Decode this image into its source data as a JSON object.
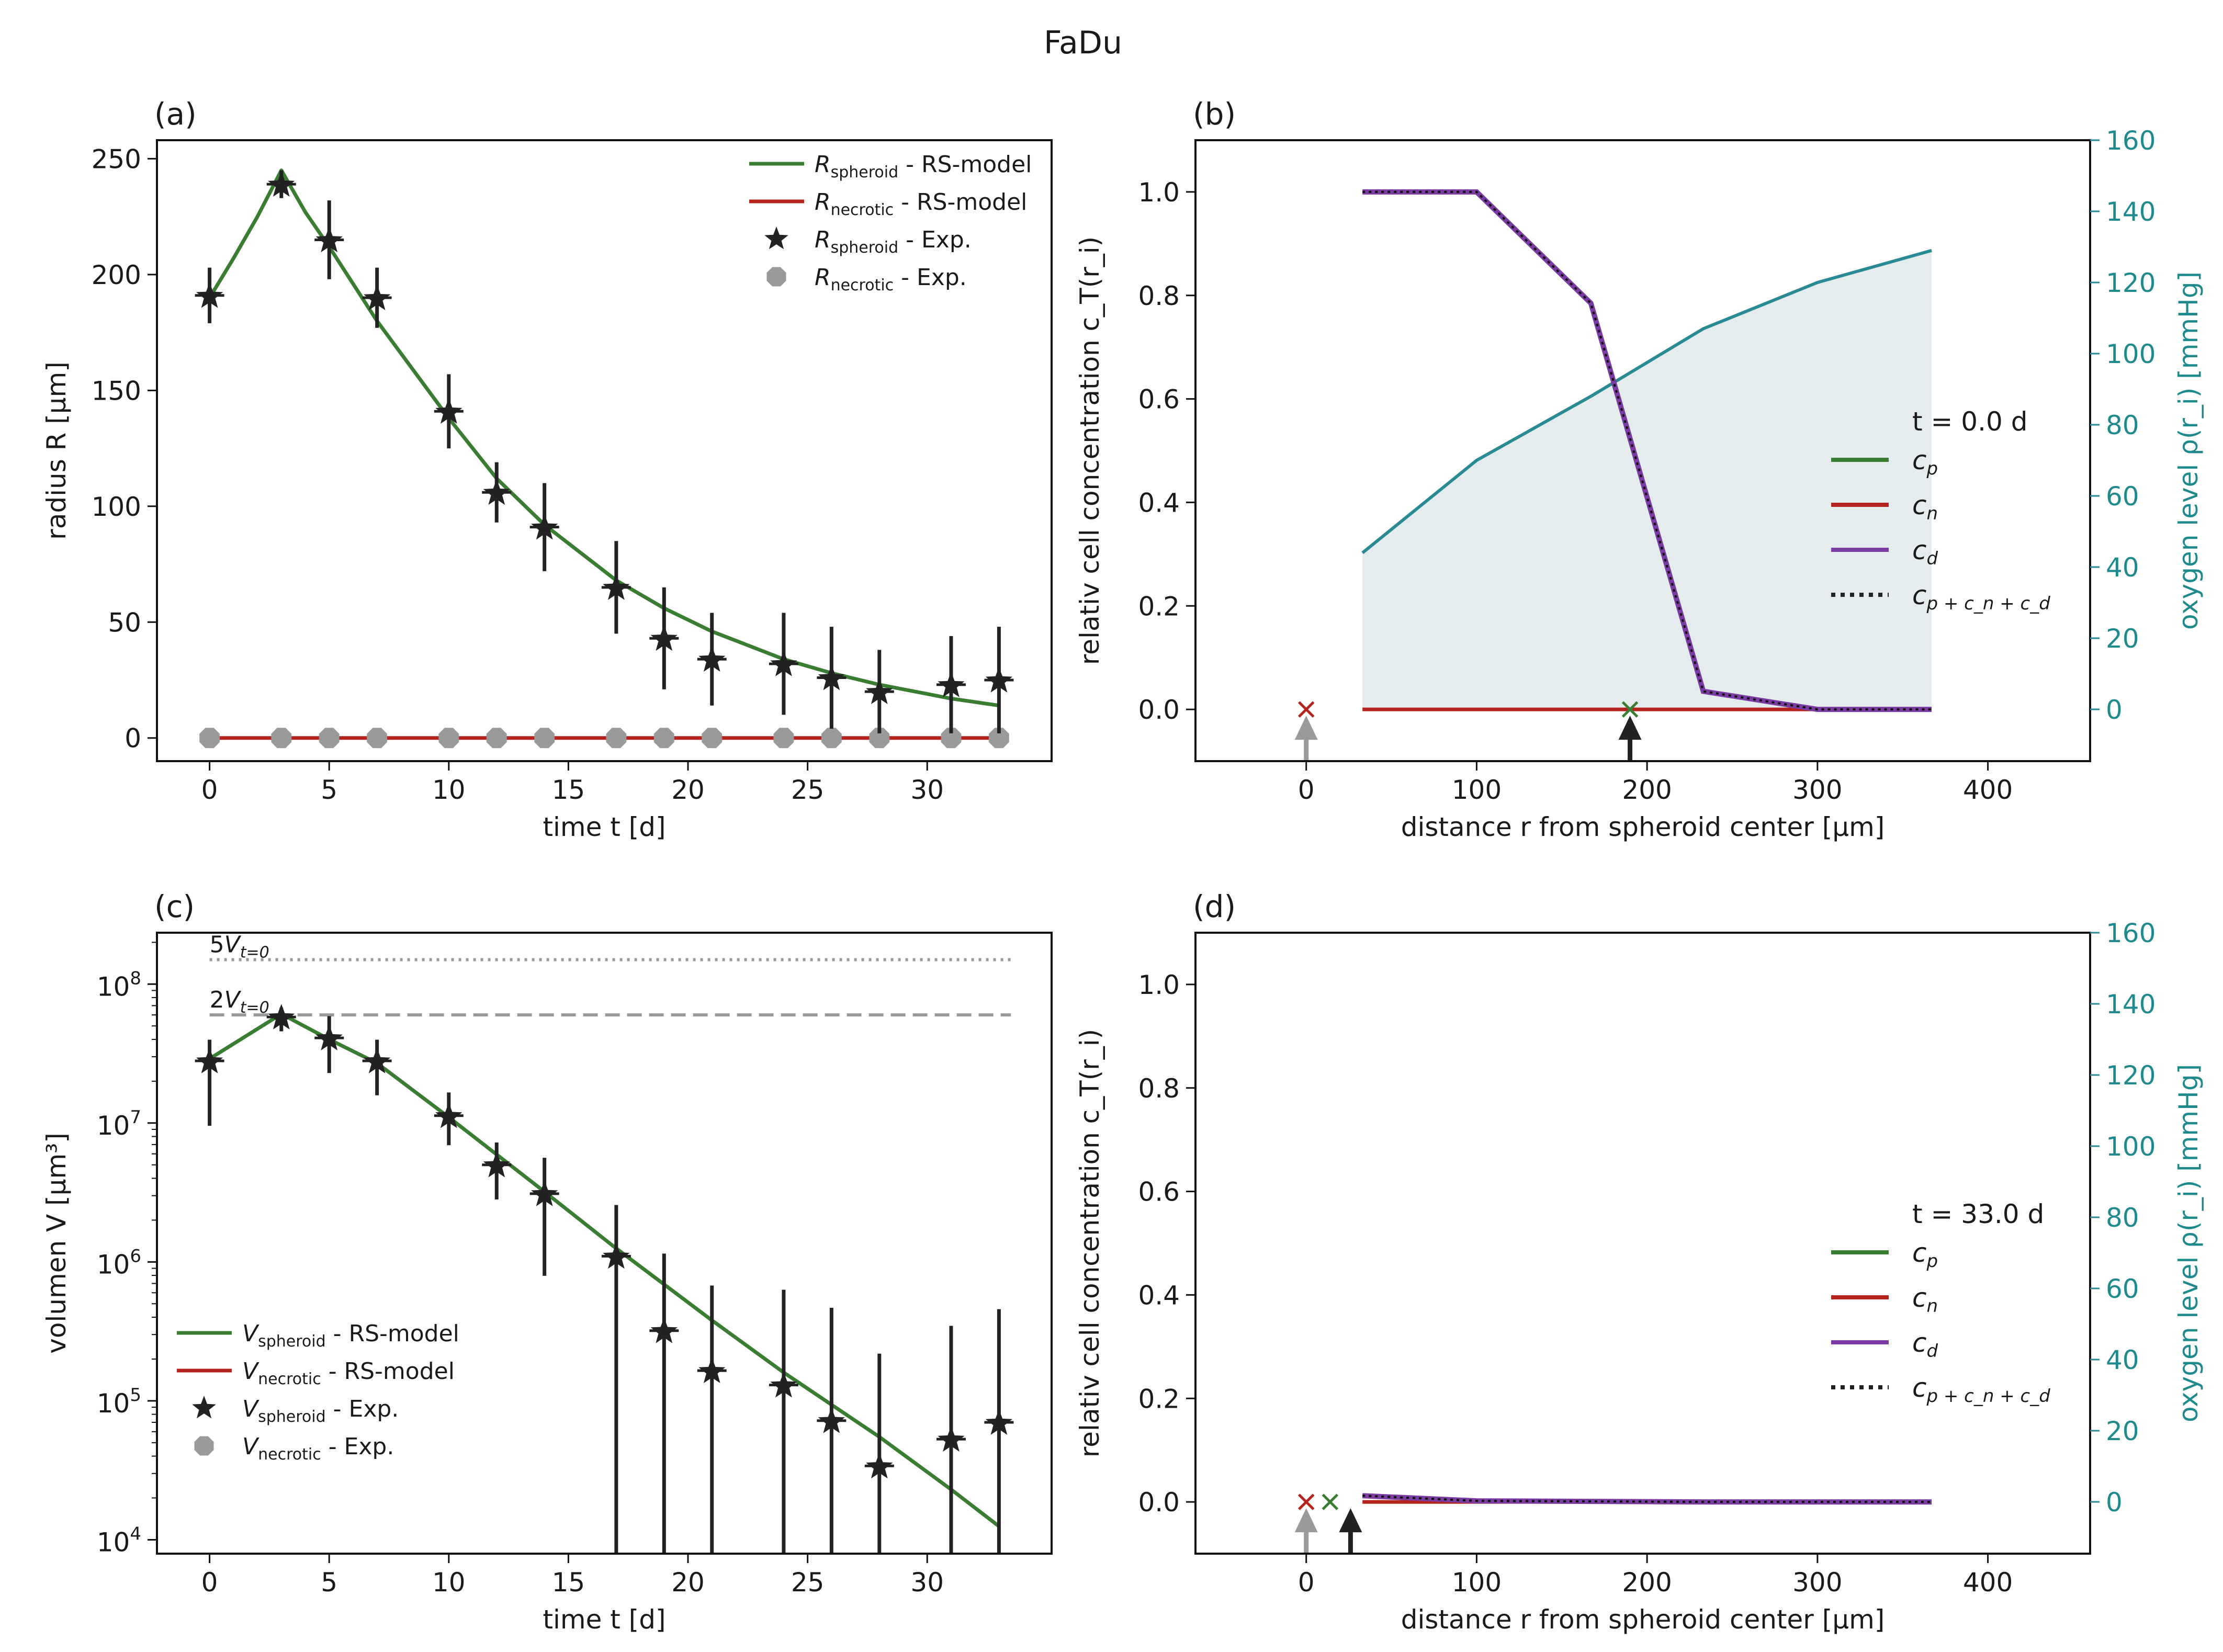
{
  "figure_title": "FaDu",
  "colors": {
    "spheroid_model": "#3a7d32",
    "necrotic_model": "#b5241c",
    "spheroid_exp": "#222222",
    "necrotic_exp": "#9a9a9a",
    "c_d": "#7a3ba3",
    "oxygen": "#2a8a93",
    "oxygen_fill": "#e4ecee"
  },
  "chart_data": [
    {
      "id": "a",
      "panel_label": "(a)",
      "type": "line",
      "xlabel": "time t [d]",
      "ylabel": "radius R [μm]",
      "xlim": [
        -2.2,
        35.2
      ],
      "ylim": [
        -10,
        258
      ],
      "xticks": [
        0,
        5,
        10,
        15,
        20,
        25,
        30
      ],
      "yticks": [
        0,
        50,
        100,
        150,
        200,
        250
      ],
      "legend_position": "upper right",
      "legend": [
        {
          "sym": "R",
          "sub": "spheroid",
          "suffix": " - RS-model"
        },
        {
          "sym": "R",
          "sub": "necrotic",
          "suffix": " - RS-model"
        },
        {
          "sym": "R",
          "sub": "spheroid",
          "suffix": " - Exp."
        },
        {
          "sym": "R",
          "sub": "necrotic",
          "suffix": " - Exp."
        }
      ],
      "model_spheroid": {
        "x": [
          0,
          1,
          2,
          3,
          4,
          5,
          7,
          10,
          12,
          14,
          17,
          19,
          21,
          24,
          26,
          28,
          31,
          33
        ],
        "y": [
          190,
          207,
          225,
          245,
          227,
          212,
          180,
          138,
          112,
          92,
          68,
          56,
          46,
          34,
          28,
          23,
          17,
          14
        ]
      },
      "model_necrotic": {
        "x": [
          0,
          33
        ],
        "y": [
          0,
          0
        ]
      },
      "exp_spheroid": {
        "x": [
          0,
          3,
          5,
          7,
          10,
          12,
          14,
          17,
          19,
          21,
          24,
          26,
          28,
          31,
          33
        ],
        "y": [
          191,
          239,
          215,
          190,
          141,
          106,
          91,
          65,
          43,
          34,
          32,
          26,
          20,
          23,
          25
        ],
        "err": [
          12,
          6,
          17,
          13,
          16,
          13,
          19,
          20,
          22,
          20,
          22,
          22,
          18,
          21,
          23
        ]
      },
      "exp_necrotic": {
        "x": [
          0,
          3,
          5,
          7,
          10,
          12,
          14,
          17,
          19,
          21,
          24,
          26,
          28,
          31,
          33
        ],
        "y": [
          0,
          0,
          0,
          0,
          0,
          0,
          0,
          0,
          0,
          0,
          0,
          0,
          0,
          0,
          0
        ]
      }
    },
    {
      "id": "c",
      "panel_label": "(c)",
      "type": "line",
      "yscale": "log",
      "xlabel": "time t [d]",
      "ylabel": "volumen V [μm³]",
      "xlim": [
        -2.2,
        35.2
      ],
      "ylim_log10": [
        3.9,
        8.37
      ],
      "xticks": [
        0,
        5,
        10,
        15,
        20,
        25,
        30
      ],
      "yticks_exp": [
        4,
        5,
        6,
        7,
        8
      ],
      "legend_position": "lower left",
      "legend": [
        {
          "sym": "V",
          "sub": "spheroid",
          "suffix": " - RS-model"
        },
        {
          "sym": "V",
          "sub": "necrotic",
          "suffix": " - RS-model"
        },
        {
          "sym": "V",
          "sub": "spheroid",
          "suffix": " - Exp."
        },
        {
          "sym": "V",
          "sub": "necrotic",
          "suffix": " - Exp."
        }
      ],
      "ref_lines": [
        {
          "label": "5V",
          "sub": "t=0",
          "value": 150000000,
          "style": "dotted"
        },
        {
          "label": "2V",
          "sub": "t=0",
          "value": 60000000,
          "style": "dashed"
        }
      ],
      "model_spheroid": {
        "x": [
          0,
          3,
          5,
          7,
          10,
          14,
          17,
          21,
          24,
          28,
          31,
          33
        ],
        "y": [
          29000000,
          61000000,
          40000000,
          27000000,
          11000000,
          3200000,
          1250000,
          380000,
          160000,
          55000,
          23000,
          12500
        ]
      },
      "exp_spheroid": {
        "x": [
          0,
          3,
          5,
          7,
          10,
          12,
          14,
          17,
          19,
          21,
          24,
          26,
          28,
          31,
          33
        ],
        "y": [
          28000000,
          58000000,
          41000000,
          28000000,
          11300000,
          5000000,
          3100000,
          1100000,
          320000,
          165000,
          130000,
          72000,
          34000,
          53000,
          70000
        ],
        "err_lo_log10": [
          6.98,
          7.66,
          7.36,
          7.2,
          6.84,
          6.45,
          5.9,
          3.5,
          3.5,
          3.5,
          3.5,
          3.5,
          3.5,
          3.5,
          3.5
        ],
        "err_hi_log10": [
          7.6,
          7.83,
          7.77,
          7.6,
          7.22,
          6.86,
          6.75,
          6.41,
          6.06,
          5.83,
          5.8,
          5.67,
          5.34,
          5.54,
          5.66
        ]
      }
    },
    {
      "id": "b",
      "panel_label": "(b)",
      "type": "line",
      "xlabel": "distance r from spheroid center [μm]",
      "ylabel_left": "relativ cell concentration c_T(r_i)",
      "ylabel_right": "oxygen level ρ(r_i) [mmHg]",
      "time_label": "t = 0.0 d",
      "xlim": [
        -65,
        460
      ],
      "ylim_left": [
        -0.1,
        1.1
      ],
      "ylim_right": [
        -14.55,
        160
      ],
      "xticks": [
        0,
        100,
        200,
        300,
        400
      ],
      "yticks_left": [
        0.0,
        0.2,
        0.4,
        0.6,
        0.8,
        1.0
      ],
      "yticks_right": [
        0,
        20,
        40,
        60,
        80,
        100,
        120,
        140,
        160
      ],
      "legend": [
        {
          "sym": "c",
          "sub": "p",
          "style": "solid",
          "color_key": "spheroid_model"
        },
        {
          "sym": "c",
          "sub": "n",
          "style": "solid",
          "color_key": "necrotic_model"
        },
        {
          "sym": "c",
          "sub": "d",
          "style": "solid",
          "color_key": "c_d"
        },
        {
          "sym": "c",
          "sub": "p + c_n + c_d",
          "style": "dotted",
          "color_key": "spheroid_exp"
        }
      ],
      "oxygen": {
        "x": [
          33,
          100,
          167,
          233,
          300,
          367
        ],
        "y": [
          44,
          70,
          88,
          107,
          120,
          129
        ]
      },
      "c_d": {
        "x": [
          33,
          100,
          167,
          233,
          300,
          367
        ],
        "y": [
          1.0,
          1.0,
          0.785,
          0.035,
          0.0,
          0.0
        ]
      },
      "c_n": {
        "x": [
          33,
          367
        ],
        "y": [
          0.0,
          0.0
        ]
      },
      "markers": [
        {
          "x": 0,
          "kind": "x",
          "color_key": "necrotic_model"
        },
        {
          "x": 190,
          "kind": "x",
          "color_key": "spheroid_model"
        }
      ],
      "arrows": [
        {
          "x": 0,
          "color_key": "necrotic_exp"
        },
        {
          "x": 190,
          "color_key": "spheroid_exp"
        }
      ]
    },
    {
      "id": "d",
      "panel_label": "(d)",
      "type": "line",
      "xlabel": "distance r from spheroid center [μm]",
      "ylabel_left": "relativ cell concentration c_T(r_i)",
      "ylabel_right": "oxygen level ρ(r_i) [mmHg]",
      "time_label": "t = 33.0 d",
      "xlim": [
        -65,
        460
      ],
      "ylim_left": [
        -0.1,
        1.1
      ],
      "ylim_right": [
        -14.55,
        160
      ],
      "xticks": [
        0,
        100,
        200,
        300,
        400
      ],
      "yticks_left": [
        0.0,
        0.2,
        0.4,
        0.6,
        0.8,
        1.0
      ],
      "yticks_right": [
        0,
        20,
        40,
        60,
        80,
        100,
        120,
        140,
        160
      ],
      "legend": [
        {
          "sym": "c",
          "sub": "p",
          "style": "solid",
          "color_key": "spheroid_model"
        },
        {
          "sym": "c",
          "sub": "n",
          "style": "solid",
          "color_key": "necrotic_model"
        },
        {
          "sym": "c",
          "sub": "d",
          "style": "solid",
          "color_key": "c_d"
        },
        {
          "sym": "c",
          "sub": "p + c_n + c_d",
          "style": "dotted",
          "color_key": "spheroid_exp"
        }
      ],
      "oxygen": {
        "x": [],
        "y": []
      },
      "c_d": {
        "x": [
          33,
          100,
          167,
          233,
          300,
          367
        ],
        "y": [
          0.012,
          0.002,
          0.001,
          0.0,
          0.0,
          0.0
        ]
      },
      "c_n": {
        "x": [
          33,
          367
        ],
        "y": [
          0.0,
          0.0
        ]
      },
      "markers": [
        {
          "x": 0,
          "kind": "x",
          "color_key": "necrotic_model"
        },
        {
          "x": 14,
          "kind": "x",
          "color_key": "spheroid_model"
        }
      ],
      "arrows": [
        {
          "x": 0,
          "color_key": "necrotic_exp"
        },
        {
          "x": 26,
          "color_key": "spheroid_exp"
        }
      ]
    }
  ]
}
